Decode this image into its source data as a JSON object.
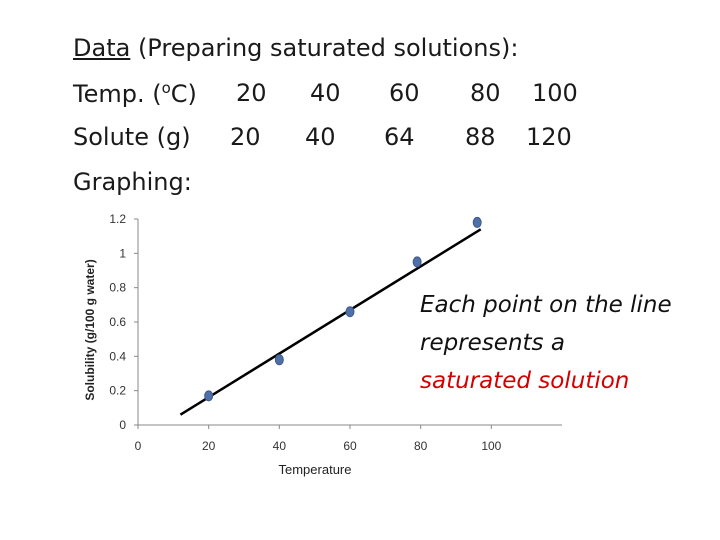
{
  "slide": {
    "heading_underlined": "Data",
    "heading_rest": " (Preparing saturated solutions):",
    "temp_label_pre": "Temp. (",
    "temp_label_sup": "o",
    "temp_label_post": "C)",
    "temp_values": [
      "20",
      "40",
      "60",
      "80",
      "100"
    ],
    "solute_label": "Solute (g)",
    "solute_values": [
      "20",
      "40",
      "64",
      "88",
      "120"
    ],
    "graphing_label": "Graphing:",
    "annotation_line1": "Each point on the line",
    "annotation_line2": "represents a",
    "annotation_line3": "saturated solution"
  },
  "colors": {
    "point": "#4f6fa8",
    "line": "#000000",
    "annotation_highlight": "#d40000"
  },
  "chart_data": {
    "type": "scatter",
    "title": "",
    "xlabel": "Temperature",
    "ylabel": "Solubility (g/100 g water)",
    "xlim": [
      0,
      120
    ],
    "ylim": [
      0,
      1.2
    ],
    "x_ticks": [
      "0",
      "20",
      "40",
      "60",
      "80",
      "100"
    ],
    "y_ticks": [
      "0",
      "0.2",
      "0.4",
      "0.6",
      "0.8",
      "1",
      "1.2"
    ],
    "grid": false,
    "legend": "none",
    "series": [
      {
        "x": [
          20,
          40,
          60,
          79,
          96
        ],
        "y": [
          0.17,
          0.38,
          0.66,
          0.95,
          1.18
        ]
      }
    ],
    "trendline": {
      "x": [
        12,
        97
      ],
      "y": [
        0.06,
        1.14
      ]
    }
  }
}
